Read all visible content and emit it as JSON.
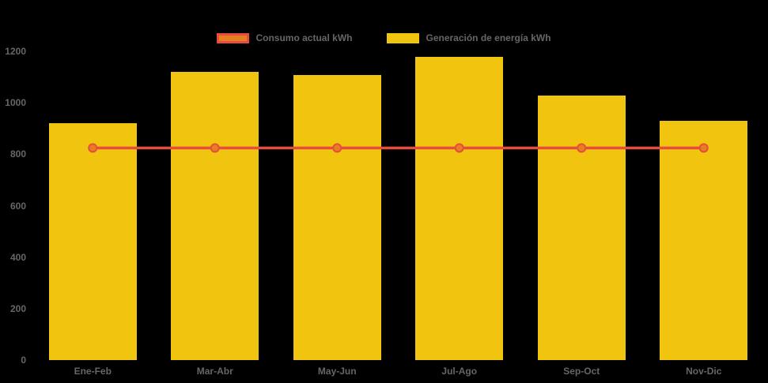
{
  "app": {
    "background_color": "#000000",
    "text_color": "#666666"
  },
  "legend": {
    "items": [
      {
        "label": "Consumo actual kWh",
        "swatch_fill": "#E67E22",
        "swatch_border": "#E74C3C",
        "series_type": "line"
      },
      {
        "label": "Generación de energía kWh",
        "swatch_fill": "#F1C40F",
        "swatch_border": "#F1C40F",
        "series_type": "bar"
      }
    ]
  },
  "chart_data": {
    "type": "bar",
    "subtype": "bar-line-combo",
    "title": "",
    "xlabel": "",
    "ylabel": "",
    "categories": [
      "Ene-Feb",
      "Mar-Abr",
      "May-Jun",
      "Jul-Ago",
      "Sep-Oct",
      "Nov-Dic"
    ],
    "series": [
      {
        "name": "Generación de energía kWh",
        "type": "bar",
        "values": [
          920,
          1120,
          1110,
          1180,
          1030,
          930
        ],
        "color": "#F1C40F"
      },
      {
        "name": "Consumo actual kWh",
        "type": "line",
        "values": [
          825,
          825,
          825,
          825,
          825,
          825
        ],
        "color": "#E74C3C",
        "marker_fill": "#E67E22",
        "marker_border": "#E74C3C"
      }
    ],
    "ylim": [
      0,
      1200
    ],
    "yticks": [
      0,
      200,
      400,
      600,
      800,
      1000,
      1200
    ],
    "grid": false,
    "axis_lines": false,
    "legend_position": "top"
  }
}
